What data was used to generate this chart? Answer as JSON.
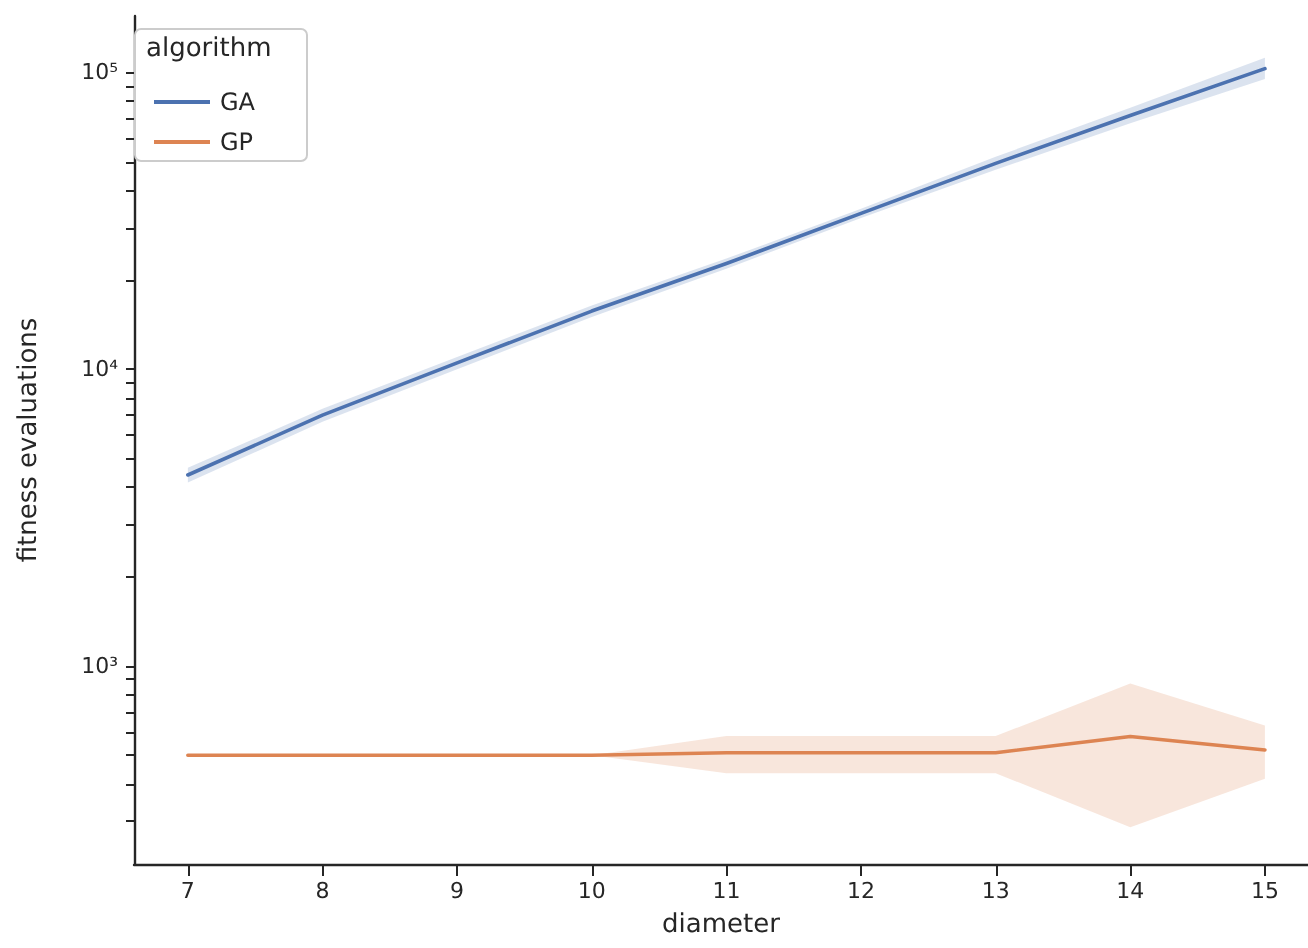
{
  "chart_data": {
    "type": "line",
    "xlabel": "diameter",
    "ylabel": "fitness evaluations",
    "legend_title": "algorithm",
    "legend": "top left",
    "grid": false,
    "log": "y",
    "line_style": "solid",
    "marker": "none",
    "x": [
      7,
      8,
      9,
      10,
      11,
      12,
      13,
      14,
      15
    ],
    "xlim": [
      6.6,
      15.32
    ],
    "xticks": [
      7,
      8,
      9,
      10,
      11,
      12,
      13,
      14,
      15
    ],
    "ylim": [
      215,
      155000
    ],
    "yticks": [
      {
        "value": 300,
        "label": null
      },
      {
        "value": 400,
        "label": null
      },
      {
        "value": 500,
        "label": null
      },
      {
        "value": 600,
        "label": null
      },
      {
        "value": 700,
        "label": null
      },
      {
        "value": 800,
        "label": null
      },
      {
        "value": 900,
        "label": null
      },
      {
        "value": 1000,
        "label": "10³"
      },
      {
        "value": 2000,
        "label": null
      },
      {
        "value": 3000,
        "label": null
      },
      {
        "value": 4000,
        "label": null
      },
      {
        "value": 5000,
        "label": null
      },
      {
        "value": 6000,
        "label": null
      },
      {
        "value": 7000,
        "label": null
      },
      {
        "value": 8000,
        "label": null
      },
      {
        "value": 9000,
        "label": null
      },
      {
        "value": 10000,
        "label": "10⁴"
      },
      {
        "value": 20000,
        "label": null
      },
      {
        "value": 30000,
        "label": null
      },
      {
        "value": 40000,
        "label": null
      },
      {
        "value": 50000,
        "label": null
      },
      {
        "value": 60000,
        "label": null
      },
      {
        "value": 70000,
        "label": null
      },
      {
        "value": 80000,
        "label": null
      },
      {
        "value": 90000,
        "label": null
      },
      {
        "value": 100000,
        "label": "10⁵"
      }
    ],
    "series": [
      {
        "name": "GA",
        "color": "#4c72b0",
        "values": [
          4400,
          7000,
          10500,
          15700,
          22700,
          33500,
          49400,
          71600,
          103000
        ],
        "lower": [
          4150,
          6650,
          10000,
          15000,
          21800,
          32300,
          47000,
          67500,
          95000
        ],
        "upper": [
          4650,
          7350,
          11000,
          16400,
          23600,
          34700,
          52000,
          76000,
          112000
        ]
      },
      {
        "name": "GP",
        "color": "#dd8452",
        "values": [
          500,
          500,
          500,
          500,
          510,
          510,
          510,
          578,
          521
        ],
        "lower": [
          500,
          500,
          500,
          500,
          435,
          435,
          435,
          286,
          417
        ],
        "upper": [
          500,
          500,
          500,
          500,
          580,
          580,
          580,
          873,
          630
        ]
      }
    ]
  }
}
